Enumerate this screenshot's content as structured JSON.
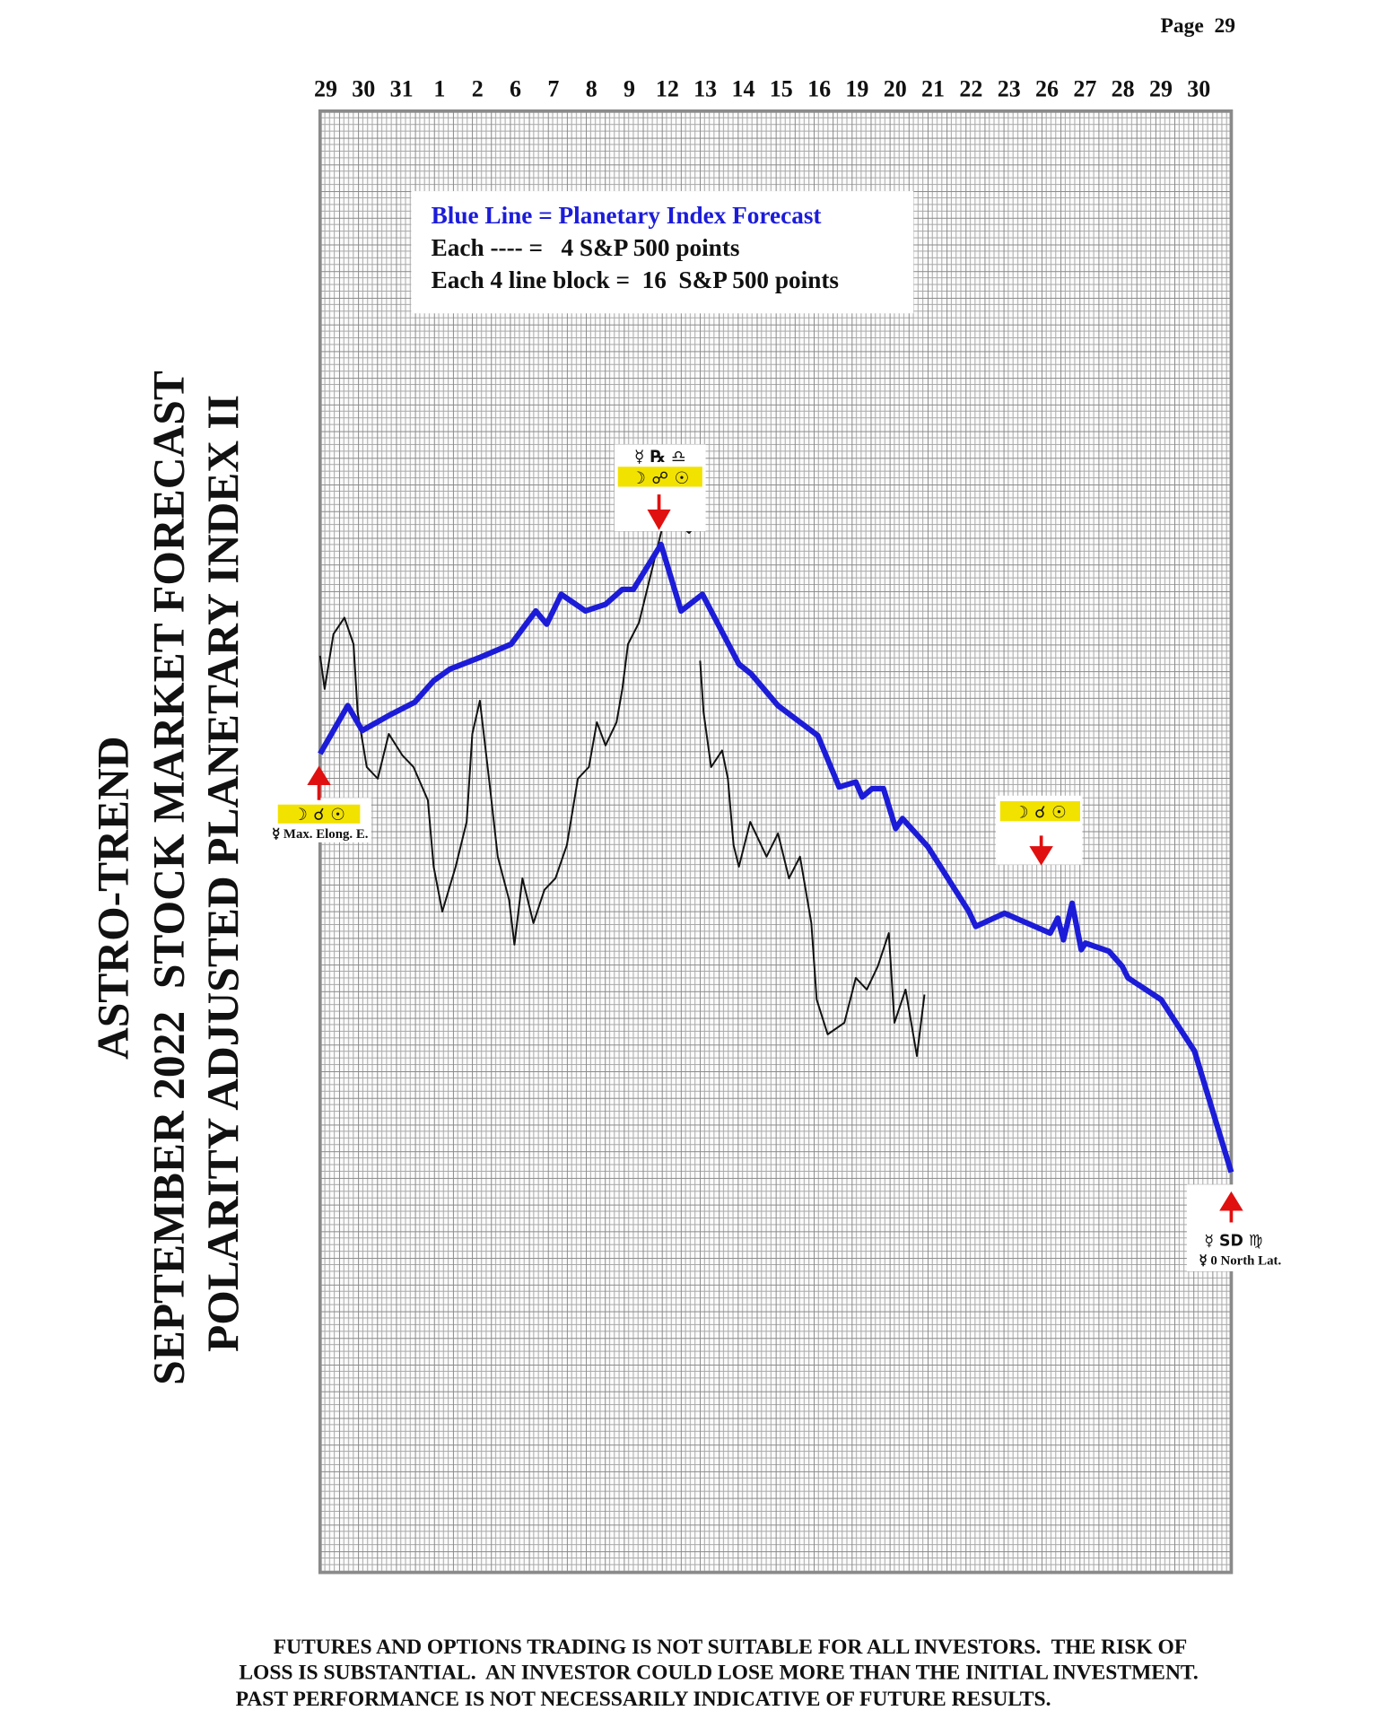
{
  "page_label": "Page  29",
  "chart_data": {
    "type": "line",
    "title_lines": [
      "ASTRO-TREND",
      "SEPTEMBER 2022  STOCK MARKET FORECAST",
      "POLARITY ADJUSTED PLANETARY INDEX II"
    ],
    "categories": [
      "29",
      "30",
      "31",
      "1",
      "2",
      "6",
      "7",
      "8",
      "9",
      "12",
      "13",
      "14",
      "15",
      "16",
      "19",
      "20",
      "21",
      "22",
      "23",
      "26",
      "27",
      "28",
      "29",
      "30"
    ],
    "xlim": [
      0,
      24
    ],
    "ylim": [
      3480,
      4360
    ],
    "grid": true,
    "legend_lines": [
      "Blue Line = Planetary Index Forecast",
      "Each ---- =   4 S&P 500 points",
      "Each 4 line block =  16  S&P 500 points"
    ],
    "series": [
      {
        "color": "#1c1cd8",
        "x": [
          0,
          0.73,
          1.11,
          1.81,
          2.49,
          2.99,
          3.42,
          4.21,
          5.03,
          5.68,
          5.97,
          6.35,
          6.99,
          7.52,
          7.96,
          8.25,
          8.98,
          9.51,
          10.07,
          11.03,
          11.36,
          12.06,
          13.11,
          13.67,
          14.11,
          14.28,
          14.54,
          14.84,
          15.16,
          15.34,
          16.01,
          17.09,
          17.27,
          18.03,
          19.23,
          19.43,
          19.58,
          19.81,
          20.05,
          20.16,
          20.78,
          21.13,
          21.28,
          22.15,
          23.03,
          24
        ],
        "values": [
          3973,
          4002,
          3987,
          3996,
          4004,
          4017,
          4024,
          4031,
          4039,
          4059,
          4051,
          4069,
          4059,
          4063,
          4072,
          4072,
          4099,
          4059,
          4069,
          4027,
          4021,
          4002,
          3984,
          3953,
          3956,
          3947,
          3952,
          3952,
          3928,
          3934,
          3917,
          3878,
          3869,
          3877,
          3865,
          3874,
          3861,
          3883,
          3855,
          3859,
          3854,
          3845,
          3838,
          3825,
          3794,
          3721
        ]
      },
      {
        "color": "#111111",
        "x": [
          0,
          0.12,
          0.35,
          0.64,
          0.88,
          0.99,
          1.23,
          1.52,
          1.81,
          2.17,
          2.46,
          2.84,
          2.99,
          3.22,
          3.57,
          3.86,
          4.01,
          4.21,
          4.45,
          4.68,
          4.98,
          5.12,
          5.33,
          5.62,
          5.91,
          6.2,
          6.5,
          6.79,
          7.08,
          7.29,
          7.52,
          7.81,
          7.96,
          8.11,
          8.4,
          8.69,
          8.98,
          9.13,
          9.42,
          9.72,
          9.95,
          null,
          10.01,
          10.1,
          10.3,
          10.59,
          10.74,
          10.89,
          11.03,
          11.33,
          11.76,
          12.06,
          12.35,
          12.64,
          12.94,
          13.08,
          13.37,
          13.81,
          14.11,
          14.4,
          14.69,
          14.98,
          15.13,
          15.42,
          15.72,
          15.92
        ],
        "values": [
          4032,
          4012,
          4045,
          4055,
          4039,
          3998,
          3965,
          3958,
          3985,
          3972,
          3965,
          3945,
          3905,
          3878,
          3905,
          3932,
          3985,
          4005,
          3958,
          3911,
          3885,
          3858,
          3898,
          3871,
          3891,
          3898,
          3918,
          3958,
          3965,
          3992,
          3978,
          3992,
          4012,
          4039,
          4052,
          4079,
          4106,
          4119,
          4112,
          4106,
          4112,
          null,
          4029,
          3998,
          3965,
          3975,
          3958,
          3918,
          3905,
          3932,
          3911,
          3925,
          3898,
          3911,
          3871,
          3825,
          3804,
          3811,
          3838,
          3831,
          3845,
          3865,
          3811,
          3831,
          3791,
          3828
        ]
      }
    ],
    "annotations": [
      "☽ ☌ ☉",
      "☿ Max. Elong. E.",
      "☿ ℞ ♎",
      "☽ ☍ ☉",
      "☽ ☌ ☉",
      "☿ SD ♍",
      "☿ 0 North Lat."
    ]
  },
  "disclaimer": [
    "FUTURES AND OPTIONS TRADING IS NOT SUITABLE FOR ALL INVESTORS.  THE RISK OF",
    "LOSS IS SUBSTANTIAL.  AN INVESTOR COULD LOSE MORE THAN THE INITIAL INVESTMENT.",
    "PAST PERFORMANCE IS NOT NECESSARILY INDICATIVE OF FUTURE RESULTS."
  ]
}
